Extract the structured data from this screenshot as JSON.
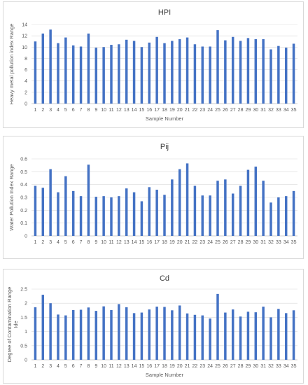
{
  "chart_data": [
    {
      "type": "bar",
      "title": "HPI",
      "xlabel": "Sample Number",
      "ylabel": "Heavy metal pollution index Range",
      "ylim": [
        0,
        14
      ],
      "yticks": [
        "0",
        "2",
        "4",
        "6",
        "8",
        "10",
        "12",
        "14"
      ],
      "grid": true,
      "bar_color": "#4472C4",
      "categories": [
        "1",
        "2",
        "3",
        "4",
        "5",
        "6",
        "7",
        "8",
        "9",
        "10",
        "11",
        "12",
        "13",
        "14",
        "15",
        "16",
        "17",
        "18",
        "19",
        "20",
        "21",
        "22",
        "23",
        "24",
        "25",
        "26",
        "27",
        "28",
        "29",
        "30",
        "31",
        "32",
        "33",
        "34",
        "35"
      ],
      "values": [
        11.0,
        12.4,
        13.1,
        10.7,
        11.7,
        10.3,
        10.1,
        12.4,
        9.9,
        10.0,
        10.4,
        10.5,
        11.3,
        11.1,
        10.0,
        10.8,
        11.8,
        10.7,
        11.1,
        11.4,
        11.7,
        10.5,
        10.1,
        10.1,
        13.0,
        11.2,
        11.8,
        11.1,
        11.6,
        11.4,
        11.4,
        9.6,
        10.2,
        9.9,
        10.6
      ]
    },
    {
      "type": "bar",
      "title": "Pij",
      "xlabel": "",
      "ylabel": "Water Pollution Index Range",
      "ylim": [
        0,
        0.6
      ],
      "yticks": [
        "0",
        "0.1",
        "0.2",
        "0.3",
        "0.4",
        "0.5",
        "0.6"
      ],
      "grid": true,
      "bar_color": "#4472C4",
      "categories": [
        "1",
        "2",
        "3",
        "4",
        "5",
        "6",
        "7",
        "8",
        "9",
        "10",
        "11",
        "12",
        "13",
        "14",
        "15",
        "16",
        "17",
        "18",
        "19",
        "20",
        "21",
        "22",
        "23",
        "24",
        "25",
        "26",
        "27",
        "28",
        "29",
        "30",
        "31",
        "32",
        "33",
        "34",
        "35"
      ],
      "values": [
        0.39,
        0.375,
        0.52,
        0.34,
        0.465,
        0.35,
        0.31,
        0.555,
        0.305,
        0.31,
        0.3,
        0.31,
        0.37,
        0.34,
        0.27,
        0.38,
        0.36,
        0.32,
        0.44,
        0.52,
        0.565,
        0.39,
        0.315,
        0.315,
        0.43,
        0.44,
        0.33,
        0.39,
        0.515,
        0.54,
        0.43,
        0.26,
        0.3,
        0.31,
        0.35
      ]
    },
    {
      "type": "bar",
      "title": "Cd",
      "xlabel": "Sample Number",
      "ylabel": "Degree of Contamination Range\nIde",
      "ylim": [
        0,
        2.5
      ],
      "yticks": [
        "0",
        "0.5",
        "1",
        "1.5",
        "2",
        "2.5"
      ],
      "grid": true,
      "bar_color": "#4472C4",
      "categories": [
        "1",
        "2",
        "3",
        "4",
        "5",
        "6",
        "7",
        "8",
        "9",
        "10",
        "11",
        "12",
        "13",
        "14",
        "15",
        "16",
        "17",
        "18",
        "19",
        "20",
        "21",
        "22",
        "23",
        "24",
        "25",
        "26",
        "27",
        "28",
        "29",
        "30",
        "31",
        "32",
        "33",
        "34",
        "35"
      ],
      "values": [
        1.86,
        2.3,
        2.0,
        1.6,
        1.57,
        1.76,
        1.77,
        1.85,
        1.73,
        1.89,
        1.76,
        1.97,
        1.86,
        1.65,
        1.67,
        1.78,
        1.88,
        1.87,
        1.75,
        1.92,
        1.64,
        1.59,
        1.57,
        1.46,
        2.33,
        1.67,
        1.78,
        1.53,
        1.7,
        1.68,
        1.88,
        1.5,
        1.8,
        1.65,
        1.75
      ]
    }
  ]
}
